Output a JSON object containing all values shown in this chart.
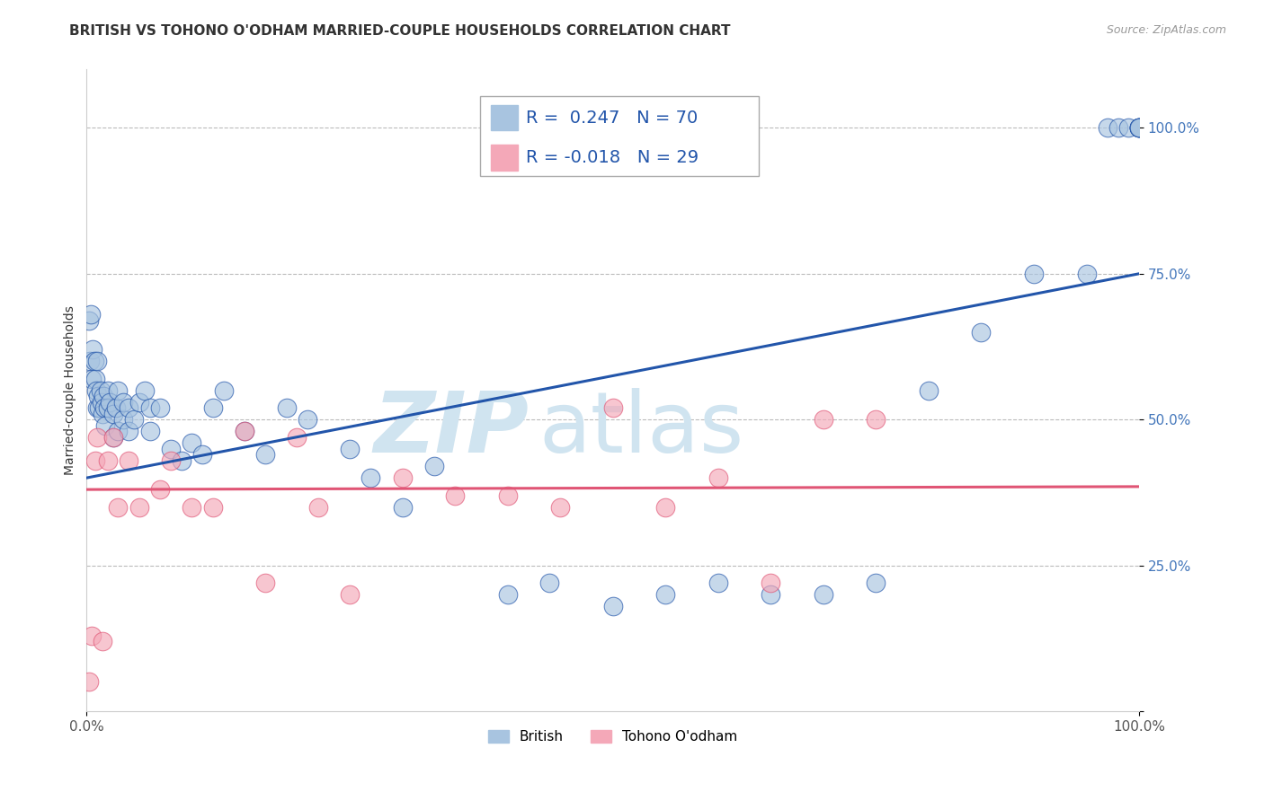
{
  "title": "BRITISH VS TOHONO O'ODHAM MARRIED-COUPLE HOUSEHOLDS CORRELATION CHART",
  "source_text": "Source: ZipAtlas.com",
  "ylabel": "Married-couple Households",
  "xlim": [
    0.0,
    100.0
  ],
  "ylim": [
    0.0,
    110.0
  ],
  "yticks": [
    0.0,
    25.0,
    50.0,
    75.0,
    100.0
  ],
  "ytick_labels": [
    "",
    "25.0%",
    "50.0%",
    "75.0%",
    "100.0%"
  ],
  "xticks": [
    0.0,
    100.0
  ],
  "xtick_labels": [
    "0.0%",
    "100.0%"
  ],
  "british_R": 0.247,
  "british_N": 70,
  "tohono_R": -0.018,
  "tohono_N": 29,
  "british_color": "#A8C4E0",
  "tohono_color": "#F4A8B8",
  "british_line_color": "#2255AA",
  "tohono_line_color": "#E05575",
  "watermark_color": "#D0E4F0",
  "british_scatter_x": [
    0.2,
    0.3,
    0.4,
    0.5,
    0.6,
    0.7,
    0.8,
    0.9,
    1.0,
    1.0,
    1.1,
    1.2,
    1.3,
    1.4,
    1.5,
    1.6,
    1.7,
    1.8,
    2.0,
    2.0,
    2.2,
    2.5,
    2.5,
    2.8,
    3.0,
    3.0,
    3.5,
    3.5,
    4.0,
    4.0,
    4.5,
    5.0,
    5.5,
    6.0,
    6.0,
    7.0,
    8.0,
    9.0,
    10.0,
    11.0,
    12.0,
    13.0,
    15.0,
    17.0,
    19.0,
    21.0,
    25.0,
    27.0,
    30.0,
    33.0,
    40.0,
    44.0,
    50.0,
    55.0,
    60.0,
    65.0,
    70.0,
    75.0,
    80.0,
    85.0,
    90.0,
    95.0,
    97.0,
    98.0,
    99.0,
    100.0,
    100.0,
    100.0,
    100.0,
    100.0
  ],
  "british_scatter_y": [
    67.0,
    60.0,
    68.0,
    57.0,
    62.0,
    60.0,
    57.0,
    55.0,
    52.0,
    60.0,
    54.0,
    52.0,
    55.0,
    53.0,
    51.0,
    54.0,
    52.0,
    49.0,
    55.0,
    52.0,
    53.0,
    51.0,
    47.0,
    52.0,
    55.0,
    48.0,
    50.0,
    53.0,
    52.0,
    48.0,
    50.0,
    53.0,
    55.0,
    52.0,
    48.0,
    52.0,
    45.0,
    43.0,
    46.0,
    44.0,
    52.0,
    55.0,
    48.0,
    44.0,
    52.0,
    50.0,
    45.0,
    40.0,
    35.0,
    42.0,
    20.0,
    22.0,
    18.0,
    20.0,
    22.0,
    20.0,
    20.0,
    22.0,
    55.0,
    65.0,
    75.0,
    75.0,
    100.0,
    100.0,
    100.0,
    100.0,
    100.0,
    100.0,
    100.0,
    100.0
  ],
  "tohono_scatter_x": [
    0.2,
    0.5,
    0.8,
    1.0,
    1.5,
    2.0,
    2.5,
    3.0,
    4.0,
    5.0,
    7.0,
    8.0,
    10.0,
    12.0,
    15.0,
    17.0,
    20.0,
    22.0,
    25.0,
    30.0,
    35.0,
    40.0,
    45.0,
    50.0,
    55.0,
    60.0,
    65.0,
    70.0,
    75.0
  ],
  "tohono_scatter_y": [
    5.0,
    13.0,
    43.0,
    47.0,
    12.0,
    43.0,
    47.0,
    35.0,
    43.0,
    35.0,
    38.0,
    43.0,
    35.0,
    35.0,
    48.0,
    22.0,
    47.0,
    35.0,
    20.0,
    40.0,
    37.0,
    37.0,
    35.0,
    52.0,
    35.0,
    40.0,
    22.0,
    50.0,
    50.0
  ],
  "british_line_y0": 40.0,
  "british_line_y1": 75.0,
  "tohono_line_y0": 38.0,
  "tohono_line_y1": 38.5,
  "background_color": "#FFFFFF",
  "grid_color": "#BBBBBB",
  "title_fontsize": 11,
  "axis_label_fontsize": 10,
  "tick_fontsize": 11,
  "legend_fontsize": 14
}
